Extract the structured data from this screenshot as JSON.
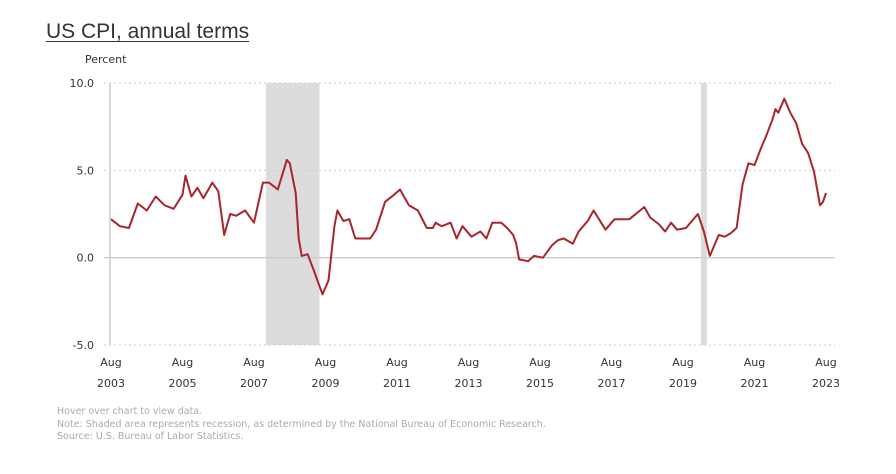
{
  "title": "US CPI, annual terms",
  "notes": [
    "Hover over chart to view data.",
    "Note: Shaded area represents recession, as determined by the National Bureau of Economic Research.",
    "Source: U.S. Bureau of Labor Statistics."
  ],
  "chart_data": {
    "type": "line",
    "title": "US CPI, annual terms",
    "ylabel": "Percent",
    "xlabel": "",
    "ylim": [
      -5,
      10
    ],
    "xlim": [
      "2003-08",
      "2023-08"
    ],
    "yticks": [
      "10.0",
      "5.0",
      "0.0",
      "-5.0"
    ],
    "ytick_values": [
      10,
      5,
      0,
      -5
    ],
    "xticks": [
      {
        "month": "Aug",
        "year": "2003",
        "date": "2003-08"
      },
      {
        "month": "Aug",
        "year": "2005",
        "date": "2005-08"
      },
      {
        "month": "Aug",
        "year": "2007",
        "date": "2007-08"
      },
      {
        "month": "Aug",
        "year": "2009",
        "date": "2009-08"
      },
      {
        "month": "Aug",
        "year": "2011",
        "date": "2011-08"
      },
      {
        "month": "Aug",
        "year": "2013",
        "date": "2013-08"
      },
      {
        "month": "Aug",
        "year": "2015",
        "date": "2015-08"
      },
      {
        "month": "Aug",
        "year": "2017",
        "date": "2017-08"
      },
      {
        "month": "Aug",
        "year": "2019",
        "date": "2019-08"
      },
      {
        "month": "Aug",
        "year": "2021",
        "date": "2021-08"
      },
      {
        "month": "Aug",
        "year": "2023",
        "date": "2023-08"
      }
    ],
    "recessions": [
      [
        "2007-12",
        "2009-06"
      ],
      [
        "2020-02",
        "2020-04"
      ]
    ],
    "grid": "dotted horizontal",
    "series": [
      {
        "name": "CPI annual % change",
        "color": "#a8262b",
        "points": [
          [
            "2003-08",
            2.2
          ],
          [
            "2003-11",
            1.8
          ],
          [
            "2004-02",
            1.7
          ],
          [
            "2004-05",
            3.1
          ],
          [
            "2004-08",
            2.7
          ],
          [
            "2004-11",
            3.5
          ],
          [
            "2005-02",
            3.0
          ],
          [
            "2005-05",
            2.8
          ],
          [
            "2005-08",
            3.6
          ],
          [
            "2005-09",
            4.7
          ],
          [
            "2005-11",
            3.5
          ],
          [
            "2006-01",
            4.0
          ],
          [
            "2006-03",
            3.4
          ],
          [
            "2006-06",
            4.3
          ],
          [
            "2006-08",
            3.8
          ],
          [
            "2006-10",
            1.3
          ],
          [
            "2006-12",
            2.5
          ],
          [
            "2007-02",
            2.4
          ],
          [
            "2007-05",
            2.7
          ],
          [
            "2007-08",
            2.0
          ],
          [
            "2007-11",
            4.3
          ],
          [
            "2008-01",
            4.3
          ],
          [
            "2008-04",
            3.9
          ],
          [
            "2008-07",
            5.6
          ],
          [
            "2008-08",
            5.4
          ],
          [
            "2008-10",
            3.7
          ],
          [
            "2008-11",
            1.1
          ],
          [
            "2008-12",
            0.1
          ],
          [
            "2009-02",
            0.2
          ],
          [
            "2009-04",
            -0.7
          ],
          [
            "2009-07",
            -2.1
          ],
          [
            "2009-09",
            -1.3
          ],
          [
            "2009-11",
            1.8
          ],
          [
            "2009-12",
            2.7
          ],
          [
            "2010-02",
            2.1
          ],
          [
            "2010-04",
            2.2
          ],
          [
            "2010-06",
            1.1
          ],
          [
            "2010-09",
            1.1
          ],
          [
            "2010-11",
            1.1
          ],
          [
            "2011-01",
            1.6
          ],
          [
            "2011-04",
            3.2
          ],
          [
            "2011-07",
            3.6
          ],
          [
            "2011-09",
            3.9
          ],
          [
            "2011-12",
            3.0
          ],
          [
            "2012-03",
            2.7
          ],
          [
            "2012-06",
            1.7
          ],
          [
            "2012-08",
            1.7
          ],
          [
            "2012-09",
            2.0
          ],
          [
            "2012-11",
            1.8
          ],
          [
            "2013-02",
            2.0
          ],
          [
            "2013-04",
            1.1
          ],
          [
            "2013-06",
            1.8
          ],
          [
            "2013-09",
            1.2
          ],
          [
            "2013-12",
            1.5
          ],
          [
            "2014-02",
            1.1
          ],
          [
            "2014-04",
            2.0
          ],
          [
            "2014-07",
            2.0
          ],
          [
            "2014-09",
            1.7
          ],
          [
            "2014-11",
            1.3
          ],
          [
            "2014-12",
            0.8
          ],
          [
            "2015-01",
            -0.1
          ],
          [
            "2015-04",
            -0.2
          ],
          [
            "2015-06",
            0.1
          ],
          [
            "2015-09",
            0.0
          ],
          [
            "2015-12",
            0.7
          ],
          [
            "2016-02",
            1.0
          ],
          [
            "2016-04",
            1.1
          ],
          [
            "2016-07",
            0.8
          ],
          [
            "2016-09",
            1.5
          ],
          [
            "2016-12",
            2.1
          ],
          [
            "2017-02",
            2.7
          ],
          [
            "2017-06",
            1.6
          ],
          [
            "2017-09",
            2.2
          ],
          [
            "2017-11",
            2.2
          ],
          [
            "2018-02",
            2.2
          ],
          [
            "2018-07",
            2.9
          ],
          [
            "2018-09",
            2.3
          ],
          [
            "2018-12",
            1.9
          ],
          [
            "2019-02",
            1.5
          ],
          [
            "2019-04",
            2.0
          ],
          [
            "2019-06",
            1.6
          ],
          [
            "2019-09",
            1.7
          ],
          [
            "2019-12",
            2.3
          ],
          [
            "2020-01",
            2.5
          ],
          [
            "2020-03",
            1.5
          ],
          [
            "2020-05",
            0.1
          ],
          [
            "2020-08",
            1.3
          ],
          [
            "2020-10",
            1.2
          ],
          [
            "2020-12",
            1.4
          ],
          [
            "2021-02",
            1.7
          ],
          [
            "2021-04",
            4.2
          ],
          [
            "2021-06",
            5.4
          ],
          [
            "2021-08",
            5.3
          ],
          [
            "2021-10",
            6.2
          ],
          [
            "2021-12",
            7.0
          ],
          [
            "2022-02",
            7.9
          ],
          [
            "2022-03",
            8.5
          ],
          [
            "2022-04",
            8.3
          ],
          [
            "2022-06",
            9.1
          ],
          [
            "2022-08",
            8.3
          ],
          [
            "2022-10",
            7.7
          ],
          [
            "2022-12",
            6.5
          ],
          [
            "2023-02",
            6.0
          ],
          [
            "2023-04",
            4.9
          ],
          [
            "2023-06",
            3.0
          ],
          [
            "2023-07",
            3.2
          ],
          [
            "2023-08",
            3.7
          ]
        ]
      }
    ]
  }
}
